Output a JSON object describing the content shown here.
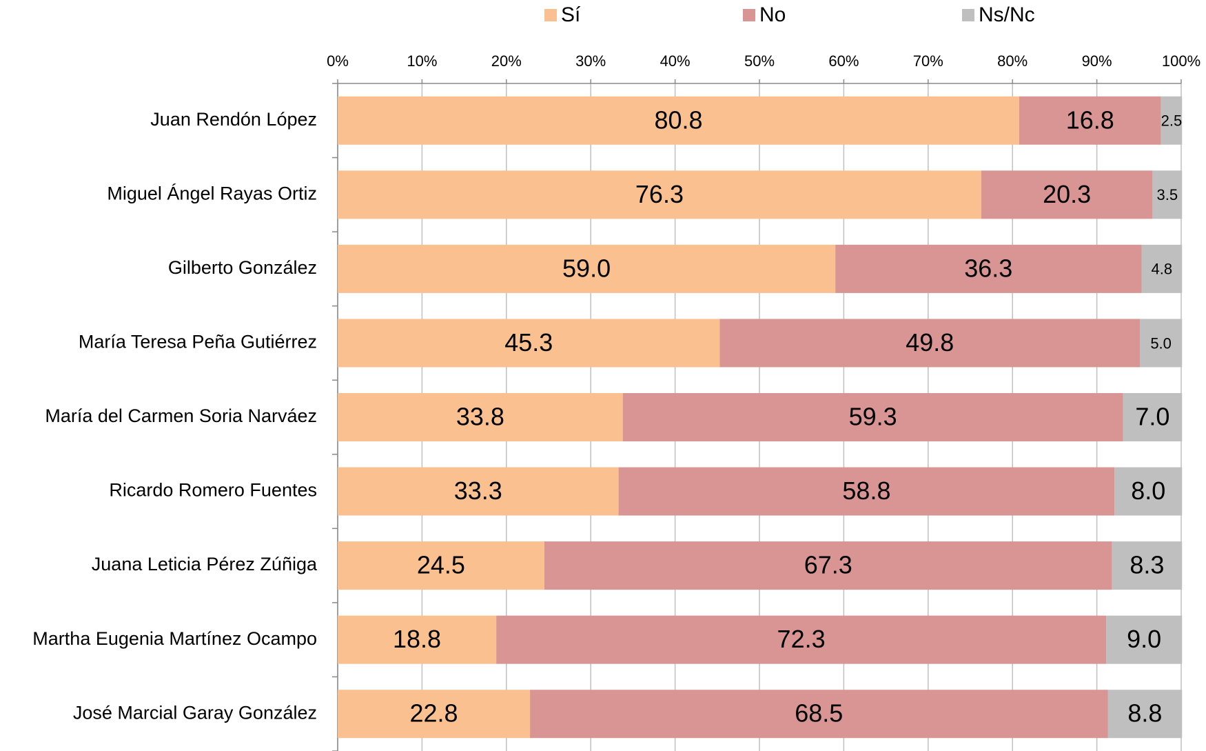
{
  "chart_data": {
    "type": "stacked_bar_horizontal",
    "categories": [
      "Juan Rendón López",
      "Miguel Ángel Rayas Ortiz",
      "Gilberto González",
      "María Teresa Peña Gutiérrez",
      "María del Carmen Soria Narváez",
      "Ricardo Romero Fuentes",
      "Juana Leticia Pérez Zúñiga",
      "Martha Eugenia Martínez Ocampo",
      "José Marcial Garay González"
    ],
    "series": [
      {
        "name": "Sí",
        "color": "#fac090",
        "values": [
          80.8,
          76.3,
          59.0,
          45.3,
          33.8,
          33.3,
          24.5,
          18.8,
          22.8
        ],
        "value_labels": [
          "80.8",
          "76.3",
          "59.0",
          "45.3",
          "33.8",
          "33.3",
          "24.5",
          "18.8",
          "22.8"
        ]
      },
      {
        "name": "No",
        "color": "#d99594",
        "values": [
          16.8,
          20.3,
          36.3,
          49.8,
          59.3,
          58.8,
          67.3,
          72.3,
          68.5
        ],
        "value_labels": [
          "16.8",
          "20.3",
          "36.3",
          "49.8",
          "59.3",
          "58.8",
          "67.3",
          "72.3",
          "68.5"
        ]
      },
      {
        "name": "Ns/Nc",
        "color": "#bfbfbf",
        "values": [
          2.5,
          3.5,
          4.8,
          5.0,
          7.0,
          8.0,
          8.3,
          9.0,
          8.8
        ],
        "value_labels": [
          "2.5",
          "3.5",
          "4.8",
          "5.0",
          "7.0",
          "8.0",
          "8.3",
          "9.0",
          "8.8"
        ]
      }
    ],
    "xlim": [
      0,
      100
    ],
    "xticks": [
      {
        "value": 0,
        "label": "0%"
      },
      {
        "value": 10,
        "label": "10%"
      },
      {
        "value": 20,
        "label": "20%"
      },
      {
        "value": 30,
        "label": "30%"
      },
      {
        "value": 40,
        "label": "40%"
      },
      {
        "value": 50,
        "label": "50%"
      },
      {
        "value": 60,
        "label": "60%"
      },
      {
        "value": 70,
        "label": "70%"
      },
      {
        "value": 80,
        "label": "80%"
      },
      {
        "value": 90,
        "label": "90%"
      },
      {
        "value": 100,
        "label": "100%"
      }
    ],
    "grid": true,
    "legend": "top"
  }
}
